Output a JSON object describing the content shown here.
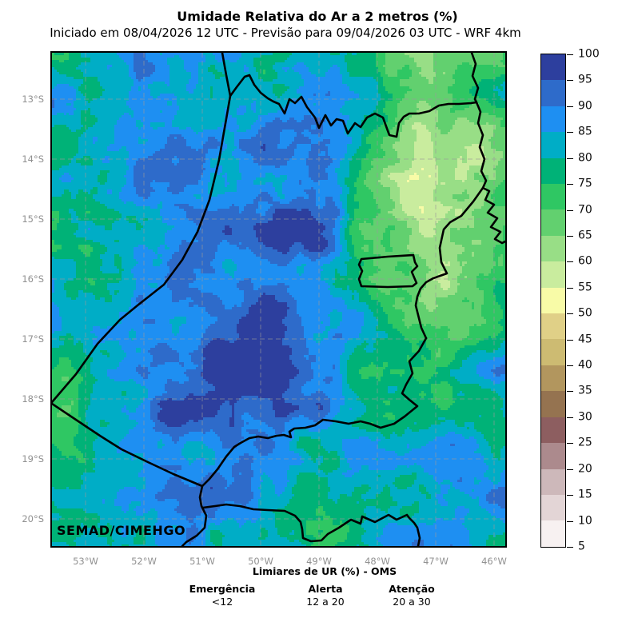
{
  "title": "Umidade Relativa do Ar a 2 metros (%)",
  "subtitle": "Iniciado em 08/04/2026 12 UTC - Previsão para 09/04/2026 03 UTC - WRF 4km",
  "map": {
    "watermark": "SEMAD/CIMEHGO",
    "x_tick_labels": [
      "53°W",
      "52°W",
      "51°W",
      "50°W",
      "49°W",
      "48°W",
      "47°W",
      "46°W"
    ],
    "y_tick_labels": [
      "13°S",
      "14°S",
      "15°S",
      "16°S",
      "17°S",
      "18°S",
      "19°S",
      "20°S"
    ]
  },
  "colorbar": {
    "min": 5,
    "max": 100,
    "step": 5,
    "tick_labels": [
      100,
      95,
      90,
      85,
      80,
      75,
      70,
      65,
      60,
      55,
      50,
      45,
      40,
      35,
      30,
      25,
      20,
      15,
      10,
      5
    ],
    "colors_low_to_high": [
      "#f7f1f1",
      "#e3d5d6",
      "#cdb8ba",
      "#ac8a8d",
      "#8d5e60",
      "#957350",
      "#b2965e",
      "#cdbb72",
      "#e0d087",
      "#f8fba7",
      "#c9ec9e",
      "#98de86",
      "#62d06f",
      "#2fc763",
      "#00b277",
      "#00adc6",
      "#1e8ff2",
      "#2e6bca",
      "#2d3f9e"
    ]
  },
  "legend": {
    "heading": "Limiares de UR (%) - OMS",
    "columns": [
      {
        "label": "Emergência",
        "value": "<12"
      },
      {
        "label": "Alerta",
        "value": "12 a 20"
      },
      {
        "label": "Atenção",
        "value": "20 a 30"
      }
    ]
  }
}
